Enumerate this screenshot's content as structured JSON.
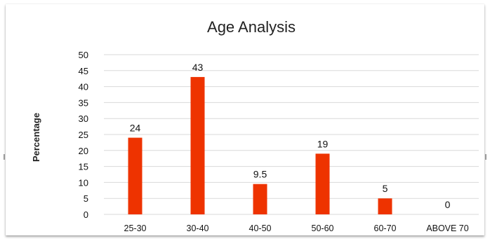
{
  "chart_data": {
    "type": "bar",
    "title": "Age Analysis",
    "xlabel": "",
    "ylabel": "Percentage",
    "categories": [
      "25-30",
      "30-40",
      "40-50",
      "50-60",
      "60-70",
      "ABOVE 70"
    ],
    "values": [
      24,
      43,
      9.5,
      19,
      5,
      0
    ],
    "data_labels": [
      "24",
      "43",
      "9.5",
      "19",
      "5",
      "0"
    ],
    "ylim": [
      0,
      50
    ],
    "yticks": [
      0,
      5,
      10,
      15,
      20,
      25,
      30,
      35,
      40,
      45,
      50
    ],
    "grid": true,
    "legend": "none",
    "bar_color": "#ee3300",
    "grid_color": "#d9d9d9"
  }
}
